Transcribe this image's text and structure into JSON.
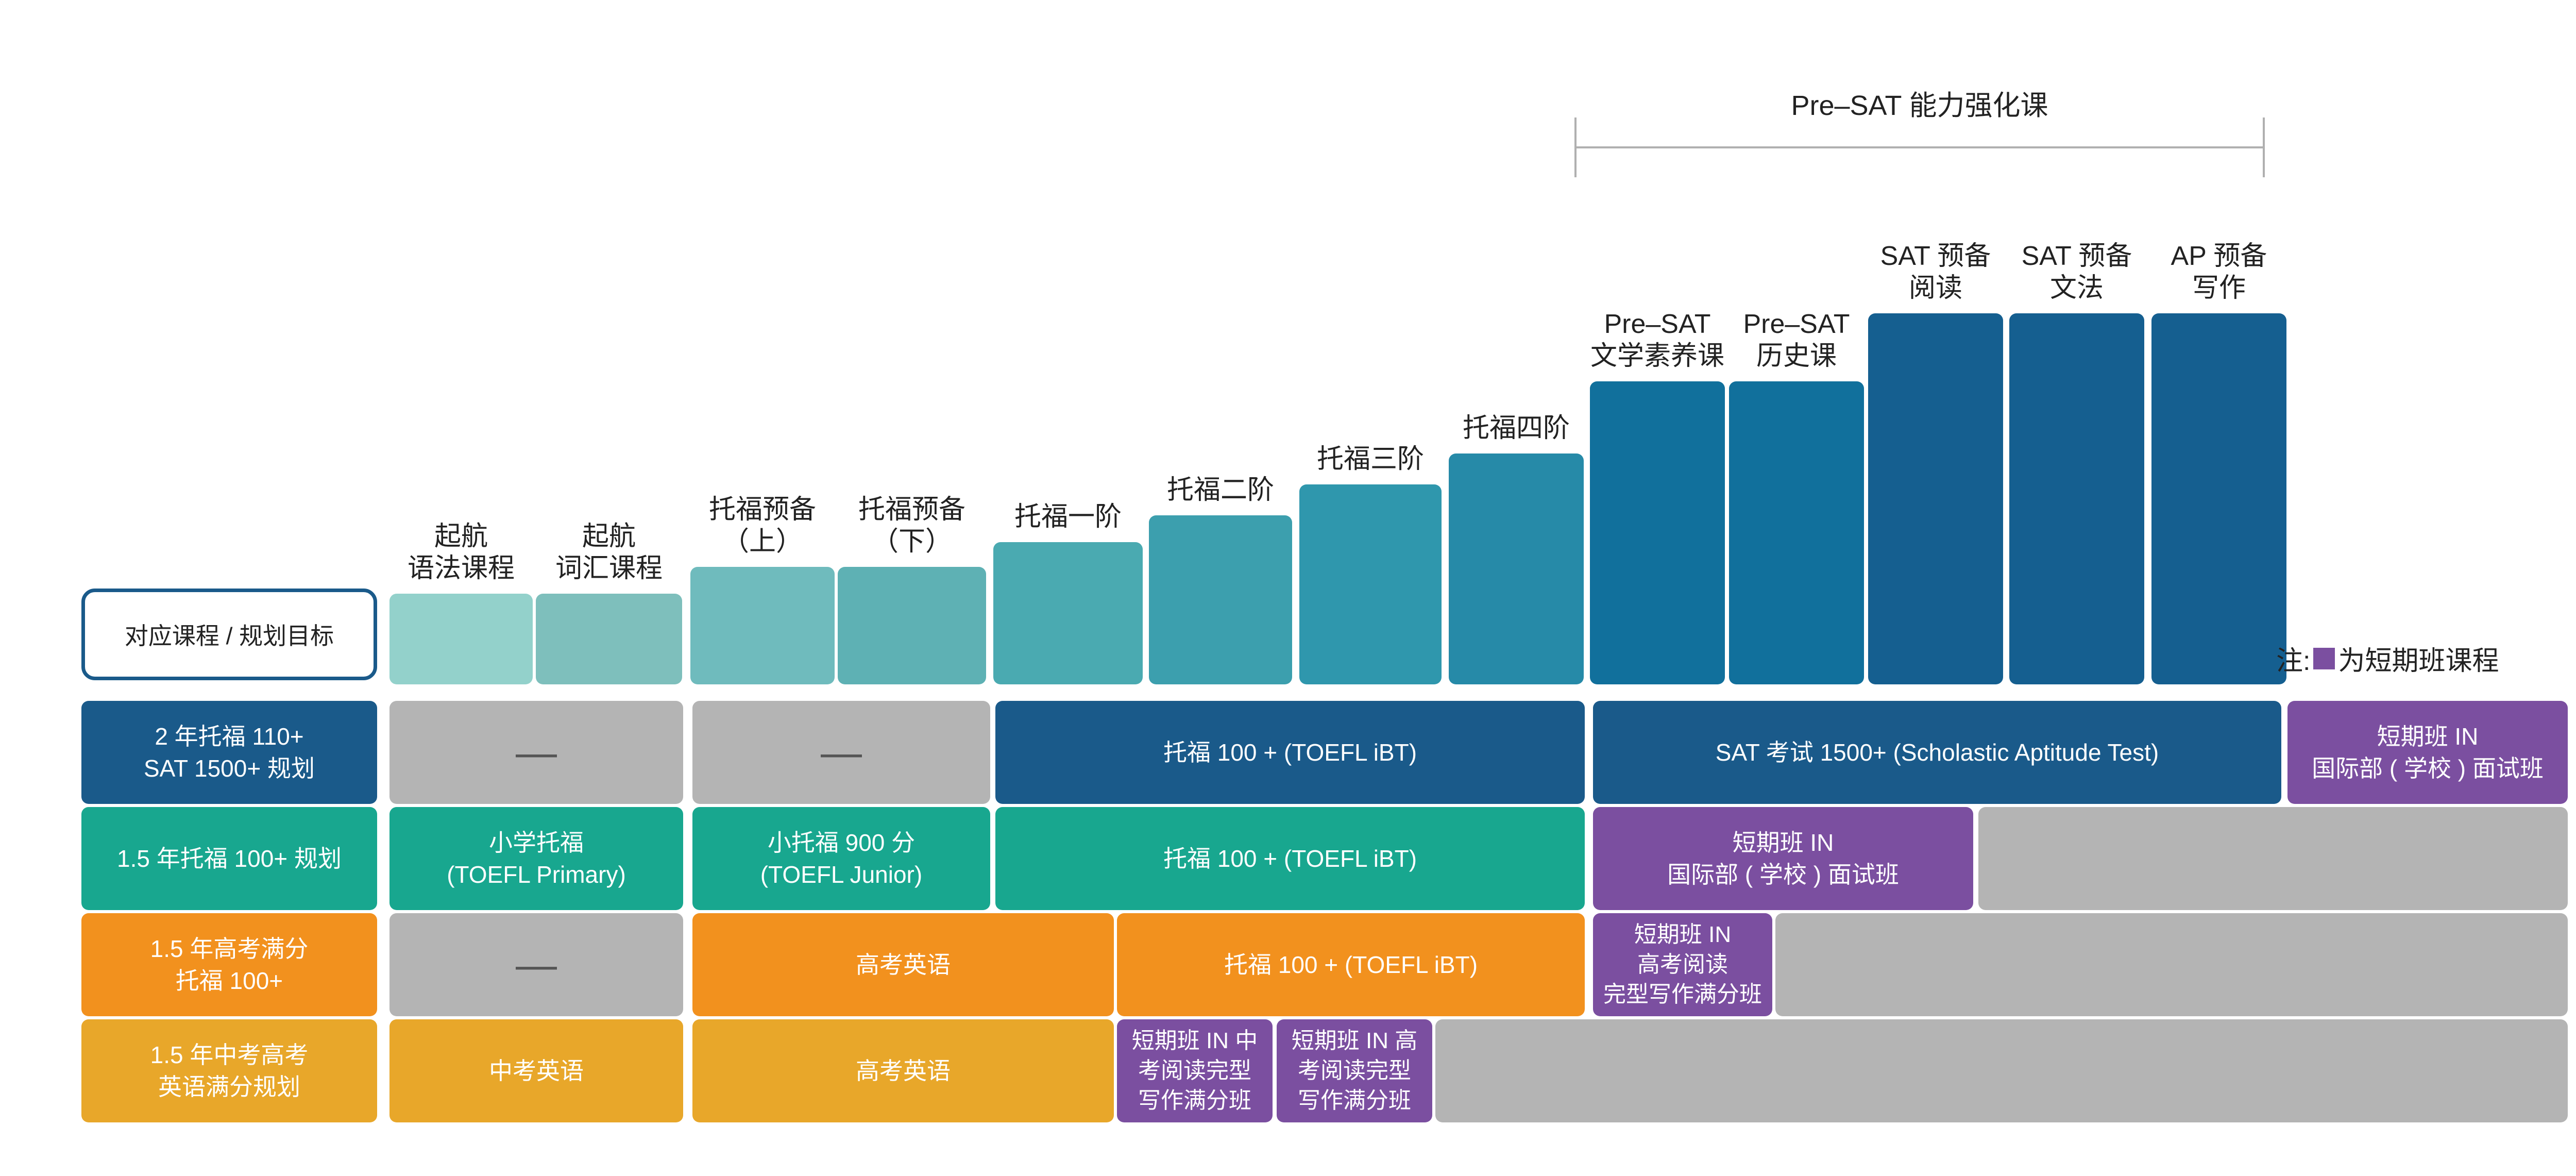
{
  "colors": {
    "navy": "#1a5a8a",
    "teal": "#18a78f",
    "orange": "#f2911e",
    "gold": "#e8a72a",
    "purple": "#7b4fa0",
    "gray": "#b4b4b4"
  },
  "header": {
    "bracket_label": "Pre–SAT 能力强化课",
    "corner_label": "对应课程 / 规划目标"
  },
  "note": {
    "prefix": "注:",
    "suffix": "为短期班课程"
  },
  "courses": [
    {
      "label": "起航\n语法课程",
      "color": "#93d1cb"
    },
    {
      "label": "起航\n词汇课程",
      "color": "#7ebfbc"
    },
    {
      "label": "托福预备\n（上）",
      "color": "#6fbbbd"
    },
    {
      "label": "托福预备\n（下）",
      "color": "#5eb1b4"
    },
    {
      "label": "托福一阶",
      "color": "#4aaab1"
    },
    {
      "label": "托福二阶",
      "color": "#3c9fae"
    },
    {
      "label": "托福三阶",
      "color": "#2f97ad"
    },
    {
      "label": "托福四阶",
      "color": "#268aa8"
    },
    {
      "label": "Pre–SAT\n文学素养课",
      "color": "#11709c"
    },
    {
      "label": "Pre–SAT\n历史课",
      "color": "#11709c"
    },
    {
      "label": "SAT 预备\n阅读",
      "color": "#155f90"
    },
    {
      "label": "SAT 预备\n文法",
      "color": "#155f90"
    },
    {
      "label": "AP 预备\n写作",
      "color": "#155f90"
    }
  ],
  "rows": [
    {
      "label": "2 年托福 110+\nSAT 1500+ 规划",
      "cells": [
        {
          "text": "—",
          "kind": "gray"
        },
        {
          "text": "—",
          "kind": "gray"
        },
        {
          "text": "托福 100 + (TOEFL iBT)",
          "kind": "navy"
        },
        {
          "text": "SAT 考试 1500+  (Scholastic Aptitude Test)",
          "kind": "navy"
        },
        {
          "text": "短期班 IN\n国际部 ( 学校 ) 面试班",
          "kind": "purple"
        }
      ]
    },
    {
      "label": "1.5 年托福 100+ 规划",
      "cells": [
        {
          "text": "小学托福\n(TOEFL Primary)",
          "kind": "teal"
        },
        {
          "text": "小托福 900 分\n(TOEFL Junior)",
          "kind": "teal"
        },
        {
          "text": "托福 100 + (TOEFL iBT)",
          "kind": "teal"
        },
        {
          "text": "短期班 IN\n国际部 ( 学校 ) 面试班",
          "kind": "purple"
        },
        {
          "text": "",
          "kind": "gray"
        }
      ]
    },
    {
      "label": "1.5 年高考满分\n托福 100+",
      "cells": [
        {
          "text": "—",
          "kind": "gray"
        },
        {
          "text": "高考英语",
          "kind": "orange"
        },
        {
          "text": "托福 100 + (TOEFL iBT)",
          "kind": "orange"
        },
        {
          "text": "短期班 IN\n高考阅读\n完型写作满分班",
          "kind": "purple"
        },
        {
          "text": "",
          "kind": "gray"
        }
      ]
    },
    {
      "label": "1.5 年中考高考\n英语满分规划",
      "cells": [
        {
          "text": "中考英语",
          "kind": "gold"
        },
        {
          "text": "高考英语",
          "kind": "gold"
        },
        {
          "text": "短期班 IN 中\n考阅读完型\n写作满分班",
          "kind": "purple"
        },
        {
          "text": "短期班 IN 高\n考阅读完型\n写作满分班",
          "kind": "purple"
        },
        {
          "text": "",
          "kind": "gray"
        }
      ]
    }
  ]
}
